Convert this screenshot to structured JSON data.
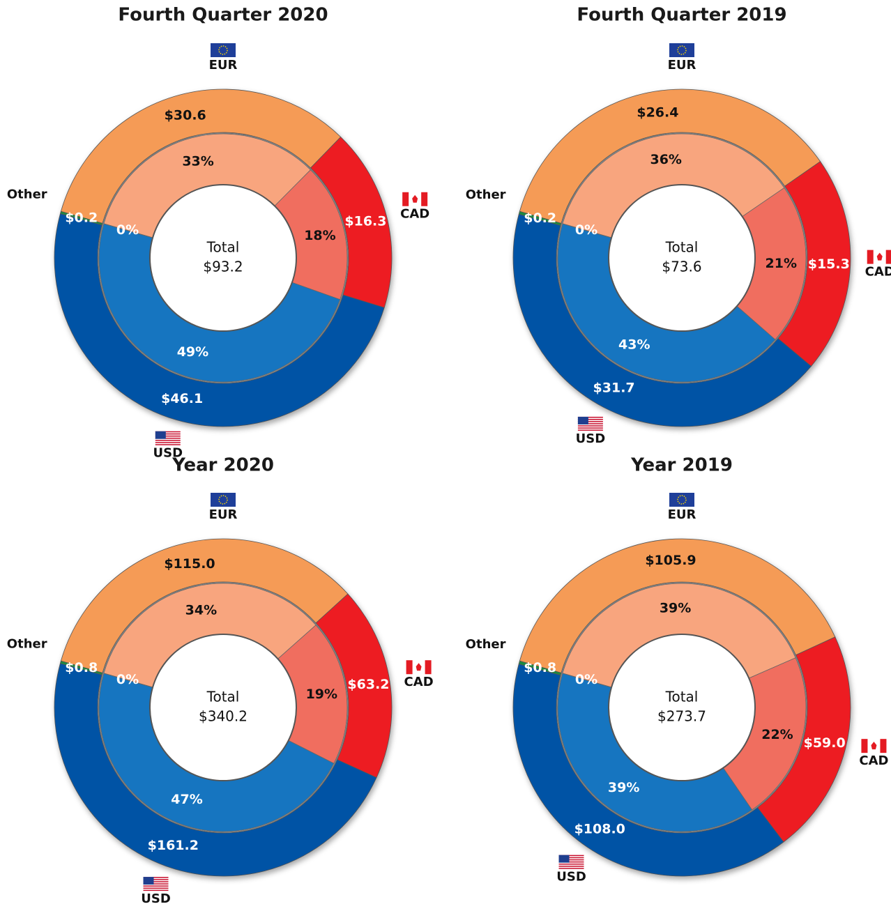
{
  "chart_data": [
    {
      "type": "donut",
      "title": "Fourth Quarter 2020",
      "center_label": "Total",
      "total": 93.2,
      "total_label": "$93.2",
      "categories": [
        "EUR",
        "CAD",
        "USD",
        "Other"
      ],
      "values": [
        30.6,
        16.3,
        46.1,
        0.2
      ],
      "value_labels": [
        "$30.6",
        "$16.3",
        "$46.1",
        "$0.2"
      ],
      "inner_values": [
        33,
        18,
        49,
        0
      ],
      "inner_value_labels": [
        "33%",
        "18%",
        "49%",
        "0%"
      ],
      "colors": [
        "#f59b56",
        "#ed1c24",
        "#0453a5",
        "#1d8a3f"
      ],
      "inner_colors": [
        "#f8a57e",
        "#f06e5e",
        "#1275c0",
        "#1d8a3f"
      ]
    },
    {
      "type": "donut",
      "title": "Fourth Quarter 2019",
      "center_label": "Total",
      "total": 73.6,
      "total_label": "$73.6",
      "categories": [
        "EUR",
        "CAD",
        "USD",
        "Other"
      ],
      "values": [
        26.4,
        15.3,
        31.7,
        0.2
      ],
      "value_labels": [
        "$26.4",
        "$15.3",
        "$31.7",
        "$0.2"
      ],
      "inner_values": [
        36,
        21,
        43,
        0
      ],
      "inner_value_labels": [
        "36%",
        "21%",
        "43%",
        "0%"
      ],
      "colors": [
        "#f59b56",
        "#ed1c24",
        "#0453a5",
        "#1d8a3f"
      ],
      "inner_colors": [
        "#f8a57e",
        "#f06e5e",
        "#1275c0",
        "#1d8a3f"
      ]
    },
    {
      "type": "donut",
      "title": "Year 2020",
      "center_label": "Total",
      "total": 340.2,
      "total_label": "$340.2",
      "categories": [
        "EUR",
        "CAD",
        "USD",
        "Other"
      ],
      "values": [
        115.0,
        63.2,
        161.2,
        0.8
      ],
      "value_labels": [
        "$115.0",
        "$63.2",
        "$161.2",
        "$0.8"
      ],
      "inner_values": [
        34,
        19,
        47,
        0
      ],
      "inner_value_labels": [
        "34%",
        "19%",
        "47%",
        "0%"
      ],
      "colors": [
        "#f59b56",
        "#ed1c24",
        "#0453a5",
        "#1d8a3f"
      ],
      "inner_colors": [
        "#f8a57e",
        "#f06e5e",
        "#1275c0",
        "#1d8a3f"
      ]
    },
    {
      "type": "donut",
      "title": "Year 2019",
      "center_label": "Total",
      "total": 273.7,
      "total_label": "$273.7",
      "categories": [
        "EUR",
        "CAD",
        "USD",
        "Other"
      ],
      "values": [
        105.9,
        59.0,
        108.0,
        0.8
      ],
      "value_labels": [
        "$105.9",
        "$59.0",
        "$108.0",
        "$0.8"
      ],
      "inner_values": [
        39,
        22,
        39,
        0
      ],
      "inner_value_labels": [
        "39%",
        "22%",
        "39%",
        "0%"
      ],
      "colors": [
        "#f59b56",
        "#ed1c24",
        "#0453a5",
        "#1d8a3f"
      ],
      "inner_colors": [
        "#f8a57e",
        "#f06e5e",
        "#1275c0",
        "#1d8a3f"
      ]
    }
  ]
}
